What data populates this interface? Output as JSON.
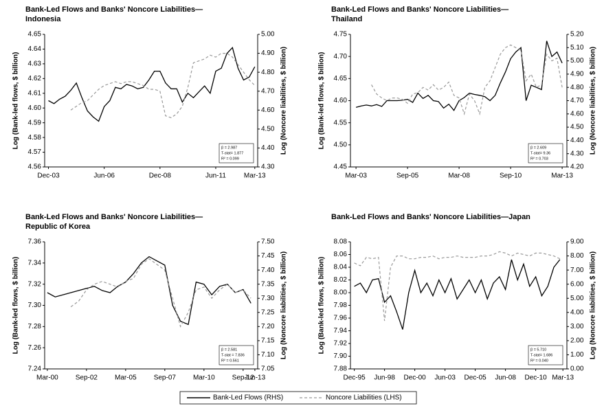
{
  "chart_data": [
    {
      "type": "line",
      "title": [
        "Bank-Led Flows and Banks' Noncore Liabilities—",
        "Indonesia"
      ],
      "y_label": "Log (Bank-led flows, $ billion)",
      "y2_label": "Log (Noncore liabilities, $ billion)",
      "annotations": [
        "β = 2.987",
        "T-stat= 1.877",
        "R² = 0.099"
      ],
      "xlim": [
        2003.75,
        2013.3
      ],
      "xticks": [
        {
          "value": 2003.92,
          "label": "Dec-03"
        },
        {
          "value": 2006.42,
          "label": "Jun-06"
        },
        {
          "value": 2008.92,
          "label": "Dec-08"
        },
        {
          "value": 2011.42,
          "label": "Jun-11"
        },
        {
          "value": 2013.17,
          "label": "Mar-13"
        }
      ],
      "ylim": [
        4.56,
        4.65
      ],
      "yticks": [
        4.56,
        4.57,
        4.58,
        4.59,
        {
          "value": 4.6,
          "label": "4.60"
        },
        4.61,
        4.62,
        4.63,
        4.64,
        4.65
      ],
      "y2lim": [
        4.3,
        5.0
      ],
      "y2ticks": [
        {
          "value": 4.3,
          "label": "4.30"
        },
        {
          "value": 4.4,
          "label": "4.40"
        },
        {
          "value": 4.5,
          "label": "4.50"
        },
        {
          "value": 4.6,
          "label": "4.60"
        },
        {
          "value": 4.7,
          "label": "4.70"
        },
        {
          "value": 4.8,
          "label": "4.80"
        },
        {
          "value": 4.9,
          "label": "4.90"
        },
        {
          "value": 5.0,
          "label": "5.00"
        }
      ],
      "x": [
        2003.92,
        2004.17,
        2004.42,
        2004.67,
        2004.92,
        2005.17,
        2005.42,
        2005.67,
        2005.92,
        2006.17,
        2006.42,
        2006.67,
        2006.92,
        2007.17,
        2007.42,
        2007.67,
        2007.92,
        2008.17,
        2008.42,
        2008.67,
        2008.92,
        2009.17,
        2009.42,
        2009.67,
        2009.92,
        2010.17,
        2010.42,
        2010.67,
        2010.92,
        2011.17,
        2011.42,
        2011.67,
        2011.92,
        2012.17,
        2012.42,
        2012.67,
        2012.92,
        2013.17
      ],
      "series": [
        {
          "name": "Bank-Led Flows (RHS)",
          "color": "#000000",
          "values": [
            4.605,
            4.603,
            4.606,
            4.608,
            4.612,
            4.617,
            4.607,
            4.598,
            4.594,
            4.591,
            4.601,
            4.605,
            4.614,
            4.613,
            4.616,
            4.615,
            4.613,
            4.614,
            4.619,
            4.625,
            4.625,
            4.617,
            4.613,
            4.613,
            4.604,
            4.61,
            4.607,
            4.611,
            4.615,
            4.61,
            4.625,
            4.627,
            4.637,
            4.641,
            4.627,
            4.619,
            4.621,
            4.628
          ]
        },
        {
          "name": "Noncore Liabilities (LHS)",
          "color": "#999999",
          "axis": "y2",
          "dashed": true,
          "values": [
            null,
            null,
            null,
            null,
            4.6,
            4.62,
            4.64,
            4.65,
            4.68,
            4.71,
            4.73,
            4.74,
            4.75,
            4.74,
            4.75,
            4.75,
            4.74,
            4.73,
            4.71,
            4.71,
            4.7,
            4.57,
            4.56,
            4.58,
            4.62,
            4.72,
            4.85,
            4.86,
            4.87,
            4.89,
            4.88,
            4.9,
            4.9,
            4.88,
            4.84,
            4.8,
            4.76,
            4.73
          ]
        }
      ]
    },
    {
      "type": "line",
      "title": [
        "Bank-Led Flows and Banks' Noncore Liabilities—",
        "Thailand"
      ],
      "y_label": "Log (Bank-led flows, $ billion)",
      "y2_label": "Log (Noncore liabilities, $ billion)",
      "annotations": [
        "β = 2.609",
        "T-stat= 9.36",
        "R² = 0.703"
      ],
      "xlim": [
        2002.9,
        2013.4
      ],
      "xticks": [
        {
          "value": 2003.17,
          "label": "Mar-03"
        },
        {
          "value": 2005.67,
          "label": "Sep-05"
        },
        {
          "value": 2008.17,
          "label": "Mar-08"
        },
        {
          "value": 2010.67,
          "label": "Sep-10"
        },
        {
          "value": 2013.17,
          "label": "Mar-13"
        }
      ],
      "ylim": [
        4.45,
        4.75
      ],
      "yticks": [
        4.45,
        {
          "value": 4.5,
          "label": "4.50"
        },
        4.55,
        {
          "value": 4.6,
          "label": "4.60"
        },
        4.65,
        {
          "value": 4.7,
          "label": "4.70"
        },
        4.75
      ],
      "y2lim": [
        4.2,
        5.2
      ],
      "y2ticks": [
        {
          "value": 4.2,
          "label": "4.20"
        },
        {
          "value": 4.3,
          "label": "4.30"
        },
        {
          "value": 4.4,
          "label": "4.40"
        },
        {
          "value": 4.5,
          "label": "4.50"
        },
        {
          "value": 4.6,
          "label": "4.60"
        },
        {
          "value": 4.7,
          "label": "4.70"
        },
        {
          "value": 4.8,
          "label": "4.80"
        },
        {
          "value": 4.9,
          "label": "4.90"
        },
        {
          "value": 5.0,
          "label": "5.00"
        },
        {
          "value": 5.1,
          "label": "5.10"
        },
        {
          "value": 5.2,
          "label": "5.20"
        }
      ],
      "x": [
        2003.17,
        2003.42,
        2003.67,
        2003.92,
        2004.17,
        2004.42,
        2004.67,
        2004.92,
        2005.17,
        2005.42,
        2005.67,
        2005.92,
        2006.17,
        2006.42,
        2006.67,
        2006.92,
        2007.17,
        2007.42,
        2007.67,
        2007.92,
        2008.17,
        2008.42,
        2008.67,
        2008.92,
        2009.17,
        2009.42,
        2009.67,
        2009.92,
        2010.17,
        2010.42,
        2010.67,
        2010.92,
        2011.17,
        2011.42,
        2011.67,
        2011.92,
        2012.17,
        2012.42,
        2012.67,
        2012.92,
        2013.17
      ],
      "series": [
        {
          "name": "Bank-Led Flows (RHS)",
          "color": "#000000",
          "values": [
            4.585,
            4.588,
            4.59,
            4.588,
            4.591,
            4.587,
            4.6,
            4.6,
            4.6,
            4.601,
            4.603,
            4.596,
            4.617,
            4.605,
            4.612,
            4.6,
            4.598,
            4.583,
            4.592,
            4.578,
            4.6,
            4.607,
            4.617,
            4.614,
            4.612,
            4.609,
            4.6,
            4.612,
            4.64,
            4.665,
            4.695,
            4.71,
            4.72,
            4.6,
            4.635,
            4.63,
            4.625,
            4.735,
            4.7,
            4.71,
            4.685
          ]
        },
        {
          "name": "Noncore Liabilities (LHS)",
          "color": "#999999",
          "axis": "y2",
          "dashed": true,
          "values": [
            null,
            null,
            null,
            4.82,
            4.75,
            4.72,
            4.7,
            4.72,
            4.72,
            4.71,
            4.68,
            4.75,
            4.76,
            4.8,
            4.78,
            4.82,
            4.78,
            4.8,
            4.84,
            4.74,
            4.72,
            4.6,
            4.75,
            4.7,
            4.6,
            4.8,
            4.85,
            4.95,
            5.05,
            5.1,
            5.12,
            5.1,
            5.08,
            4.85,
            4.9,
            4.8,
            4.82,
            5.05,
            5.0,
            5.02,
            4.8
          ]
        }
      ]
    },
    {
      "type": "line",
      "title": [
        "Bank-Led Flows and Banks' Noncore Liabilities—",
        "Republic of Korea"
      ],
      "y_label": "Log (Bank-led flows, $ billion)",
      "y2_label": "Log (Noncore liabilities, $ billion)",
      "annotations": [
        "β = 2.581",
        "T-stat = 7.836",
        "R² = 0.561"
      ],
      "xlim": [
        2000.0,
        2013.6
      ],
      "xticks": [
        {
          "value": 2000.17,
          "label": "Mar-00"
        },
        {
          "value": 2002.67,
          "label": "Sep-02"
        },
        {
          "value": 2005.17,
          "label": "Mar-05"
        },
        {
          "value": 2007.67,
          "label": "Sep-07"
        },
        {
          "value": 2010.17,
          "label": "Mar-10"
        },
        {
          "value": 2012.67,
          "label": "Sep-12"
        },
        {
          "value": 2013.42,
          "label": "Jun-13"
        }
      ],
      "ylim": [
        7.24,
        7.36
      ],
      "yticks": [
        7.24,
        7.26,
        7.28,
        {
          "value": 7.3,
          "label": "7.30"
        },
        7.32,
        7.34,
        7.36
      ],
      "y2lim": [
        7.05,
        7.5
      ],
      "y2ticks": [
        7.05,
        {
          "value": 7.1,
          "label": "7.10"
        },
        7.15,
        {
          "value": 7.2,
          "label": "7.20"
        },
        7.25,
        {
          "value": 7.3,
          "label": "7.30"
        },
        7.35,
        {
          "value": 7.4,
          "label": "7.40"
        },
        7.45,
        {
          "value": 7.5,
          "label": "7.50"
        }
      ],
      "x": [
        2000.17,
        2000.67,
        2001.17,
        2001.67,
        2002.17,
        2002.67,
        2003.17,
        2003.67,
        2004.17,
        2004.67,
        2005.17,
        2005.67,
        2006.17,
        2006.67,
        2007.17,
        2007.67,
        2008.17,
        2008.67,
        2009.17,
        2009.67,
        2010.17,
        2010.67,
        2011.17,
        2011.67,
        2012.17,
        2012.67,
        2013.17
      ],
      "series": [
        {
          "name": "Bank-Led Flows (RHS)",
          "color": "#000000",
          "values": [
            7.312,
            7.308,
            7.31,
            7.312,
            7.314,
            7.316,
            7.318,
            7.314,
            7.312,
            7.318,
            7.322,
            7.33,
            7.34,
            7.346,
            7.342,
            7.338,
            7.3,
            7.285,
            7.282,
            7.322,
            7.32,
            7.31,
            7.318,
            7.32,
            7.312,
            7.315,
            7.302
          ]
        },
        {
          "name": "Noncore Liabilities (LHS)",
          "color": "#999999",
          "axis": "y2",
          "dashed": true,
          "values": [
            null,
            null,
            null,
            7.27,
            7.29,
            7.33,
            7.35,
            7.36,
            7.35,
            7.34,
            7.36,
            7.37,
            7.42,
            7.44,
            7.42,
            7.4,
            7.3,
            7.2,
            7.25,
            7.33,
            7.34,
            7.3,
            7.33,
            7.35,
            7.32,
            7.33,
            7.3
          ]
        }
      ]
    },
    {
      "type": "line",
      "title": [
        "Bank-Led Flows and Banks' Noncore Liabilities—Japan"
      ],
      "y_label": "Log (Bank-led flows, $ billion)",
      "y2_label": "Log (Noncore liabilities, $ billion)",
      "annotations": [
        "β = 5.710",
        "T-stat= 1.686",
        "R² = 0.040"
      ],
      "xlim": [
        1995.6,
        2013.5
      ],
      "xticks": [
        {
          "value": 1995.92,
          "label": "Dec-95"
        },
        {
          "value": 1998.42,
          "label": "Jun-98"
        },
        {
          "value": 2000.92,
          "label": "Dec-00"
        },
        {
          "value": 2003.42,
          "label": "Jun-03"
        },
        {
          "value": 2005.92,
          "label": "Dec-05"
        },
        {
          "value": 2008.42,
          "label": "Jun-08"
        },
        {
          "value": 2010.92,
          "label": "Dec-10"
        },
        {
          "value": 2013.17,
          "label": "Mar-13"
        }
      ],
      "ylim": [
        7.88,
        8.08
      ],
      "yticks": [
        7.88,
        {
          "value": 7.9,
          "label": "7.90"
        },
        7.92,
        7.94,
        7.96,
        7.98,
        {
          "value": 8.0,
          "label": "8.00"
        },
        8.02,
        8.04,
        8.06,
        8.08
      ],
      "y2lim": [
        0,
        9
      ],
      "y2ticks": [
        {
          "value": 0,
          "label": "0.00"
        },
        {
          "value": 1,
          "label": "1.00"
        },
        {
          "value": 2,
          "label": "2.00"
        },
        {
          "value": 3,
          "label": "3.00"
        },
        {
          "value": 4,
          "label": "4.00"
        },
        {
          "value": 5,
          "label": "5.00"
        },
        {
          "value": 6,
          "label": "6.00"
        },
        {
          "value": 7,
          "label": "7.00"
        },
        {
          "value": 8,
          "label": "8.00"
        },
        {
          "value": 9,
          "label": "9.00"
        }
      ],
      "x": [
        1995.92,
        1996.42,
        1996.92,
        1997.42,
        1997.92,
        1998.42,
        1998.92,
        1999.42,
        1999.92,
        2000.42,
        2000.92,
        2001.42,
        2001.92,
        2002.42,
        2002.92,
        2003.42,
        2003.92,
        2004.42,
        2004.92,
        2005.42,
        2005.92,
        2006.42,
        2006.92,
        2007.42,
        2007.92,
        2008.42,
        2008.92,
        2009.42,
        2009.92,
        2010.42,
        2010.92,
        2011.42,
        2011.92,
        2012.42,
        2012.92
      ],
      "series": [
        {
          "name": "Bank-Led Flows (RHS)",
          "color": "#000000",
          "values": [
            8.01,
            8.015,
            8.0,
            8.02,
            8.022,
            7.985,
            7.995,
            7.97,
            7.942,
            8.0,
            8.035,
            8.0,
            8.015,
            7.995,
            8.02,
            8.0,
            8.022,
            7.99,
            8.005,
            8.02,
            8.0,
            8.02,
            7.99,
            8.015,
            8.025,
            8.005,
            8.052,
            8.02,
            8.045,
            8.01,
            8.025,
            7.995,
            8.01,
            8.04,
            8.052
          ]
        },
        {
          "name": "Noncore Liabilities (LHS)",
          "color": "#999999",
          "axis": "y2",
          "dashed": true,
          "values": [
            7.5,
            7.3,
            7.9,
            7.8,
            7.9,
            3.4,
            7.2,
            8.0,
            8.0,
            7.8,
            7.8,
            7.9,
            7.9,
            8.0,
            7.8,
            7.9,
            7.9,
            8.0,
            7.9,
            7.9,
            7.9,
            8.0,
            8.0,
            8.1,
            8.3,
            8.2,
            8.0,
            8.2,
            8.1,
            8.0,
            8.2,
            8.2,
            8.1,
            8.0,
            7.8
          ]
        }
      ]
    }
  ]
}
